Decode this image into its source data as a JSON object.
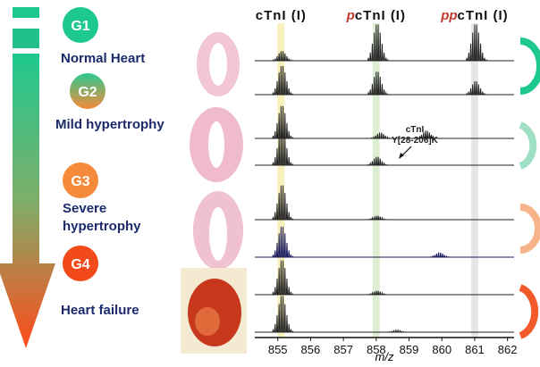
{
  "groups": [
    {
      "badge": "G1",
      "label": [
        "Normal Heart"
      ]
    },
    {
      "badge": "G2",
      "label": [
        "Mild hypertrophy"
      ]
    },
    {
      "badge": "G3",
      "label": [
        "Severe",
        "hypertrophy"
      ]
    },
    {
      "badge": "G4",
      "label": [
        "Heart failure"
      ]
    }
  ],
  "chart_data": {
    "type": "spectra",
    "peak_labels": [
      {
        "prefix": "",
        "text": "cTnI (I)"
      },
      {
        "prefix": "p",
        "text": "cTnI (I)"
      },
      {
        "prefix": "pp",
        "text": "cTnI (I)"
      }
    ],
    "annotation": [
      "cTnI",
      "Y[28-206]K"
    ],
    "x_label": "m/z",
    "xlim": [
      854.3,
      862.2
    ],
    "xticks": [
      855,
      856,
      857,
      858,
      859,
      860,
      861,
      862
    ],
    "series": [
      {
        "color": "#222222",
        "peaks": [
          855.1,
          858,
          861
        ],
        "heights": [
          25,
          95,
          95
        ]
      },
      {
        "color": "#222222",
        "peaks": [
          855.1,
          858,
          861
        ],
        "heights": [
          75,
          60,
          35
        ]
      },
      {
        "color": "#222222",
        "peaks": [
          855.1,
          858.1,
          859.5
        ],
        "heights": [
          85,
          15,
          20
        ]
      },
      {
        "color": "#222222",
        "peaks": [
          855.1,
          858
        ],
        "heights": [
          95,
          22
        ]
      },
      {
        "color": "#222222",
        "peaks": [
          855.1,
          858
        ],
        "heights": [
          90,
          10
        ]
      },
      {
        "color": "#1a1a5e",
        "peaks": [
          855.1,
          859.9
        ],
        "heights": [
          80,
          12
        ]
      },
      {
        "color": "#222222",
        "peaks": [
          855.1,
          858
        ],
        "heights": [
          90,
          10
        ]
      },
      {
        "color": "#222222",
        "peaks": [
          855.1,
          858.6
        ],
        "heights": [
          95,
          5
        ]
      }
    ]
  }
}
